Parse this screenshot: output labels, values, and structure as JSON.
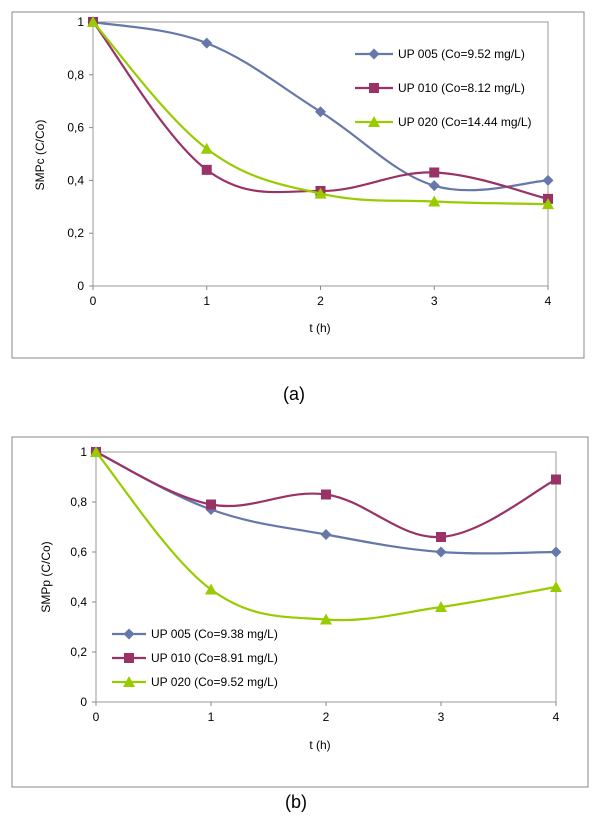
{
  "chart_data": [
    {
      "type": "line",
      "caption": "(a)",
      "xlabel": "t (h)",
      "ylabel": "SMPc (C/Co)",
      "xlim": [
        0,
        4
      ],
      "ylim": [
        0,
        1
      ],
      "x_ticks": [
        "0",
        "1",
        "2",
        "3",
        "4"
      ],
      "y_ticks": [
        "0",
        "0,2",
        "0,4",
        "0,6",
        "0,8",
        "1"
      ],
      "legend_position": "top-right",
      "x": [
        0,
        1,
        2,
        3,
        4
      ],
      "series": [
        {
          "name": "UP 005 (Co=9.52 mg/L)",
          "values": [
            1.0,
            0.92,
            0.66,
            0.38,
            0.4
          ],
          "color": "#6677AA",
          "marker": "diamond"
        },
        {
          "name": "UP 010 (Co=8.12 mg/L)",
          "values": [
            1.0,
            0.44,
            0.36,
            0.43,
            0.33
          ],
          "color": "#993366",
          "marker": "square"
        },
        {
          "name": "UP 020 (Co=14.44 mg/L)",
          "values": [
            1.0,
            0.52,
            0.35,
            0.32,
            0.31
          ],
          "color": "#99CC00",
          "marker": "triangle"
        }
      ]
    },
    {
      "type": "line",
      "caption": "(b)",
      "xlabel": "t (h)",
      "ylabel": "SMPp (C/Co)",
      "xlim": [
        0,
        4
      ],
      "ylim": [
        0,
        1
      ],
      "x_ticks": [
        "0",
        "1",
        "2",
        "3",
        "4"
      ],
      "y_ticks": [
        "0",
        "0,2",
        "0,4",
        "0,6",
        "0,8",
        "1"
      ],
      "legend_position": "bottom-left",
      "x": [
        0,
        1,
        2,
        3,
        4
      ],
      "series": [
        {
          "name": "UP 005 (Co=9.38 mg/L)",
          "values": [
            1.0,
            0.77,
            0.67,
            0.6,
            0.6
          ],
          "color": "#6677AA",
          "marker": "diamond"
        },
        {
          "name": "UP 010 (Co=8.91 mg/L)",
          "values": [
            1.0,
            0.79,
            0.83,
            0.66,
            0.89
          ],
          "color": "#993366",
          "marker": "square"
        },
        {
          "name": "UP 020 (Co=9.52 mg/L)",
          "values": [
            1.0,
            0.45,
            0.33,
            0.38,
            0.46
          ],
          "color": "#99CC00",
          "marker": "triangle"
        }
      ]
    }
  ]
}
